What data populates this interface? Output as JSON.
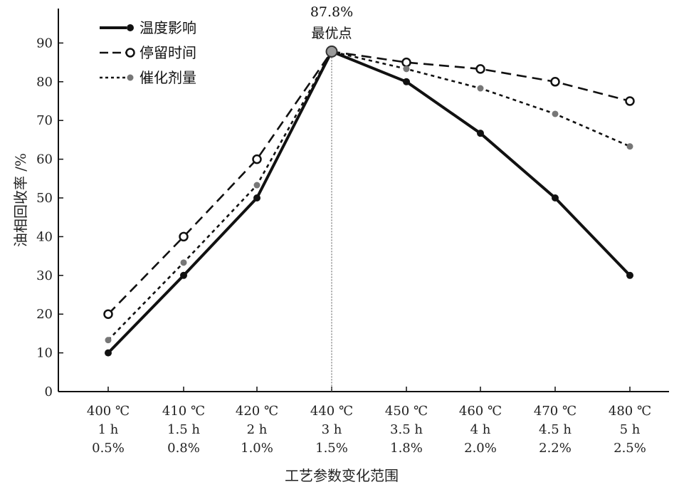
{
  "chart_data": {
    "type": "line",
    "title": "",
    "xlabel": "工艺参数变化范围",
    "ylabel": "油相回收率 /%",
    "ylim": [
      0,
      100
    ],
    "yticks": [
      0,
      10,
      20,
      30,
      40,
      50,
      60,
      70,
      80,
      90
    ],
    "categories": [
      [
        "400 ℃",
        "1 h",
        "0.5%"
      ],
      [
        "410 ℃",
        "1.5 h",
        "0.8%"
      ],
      [
        "420 ℃",
        "2 h",
        "1.0%"
      ],
      [
        "440 ℃",
        "3 h",
        "1.5%"
      ],
      [
        "450 ℃",
        "3.5 h",
        "1.8%"
      ],
      [
        "460 ℃",
        "4 h",
        "2.0%"
      ],
      [
        "470 ℃",
        "4.5 h",
        "2.2%"
      ],
      [
        "480 ℃",
        "5 h",
        "2.5%"
      ]
    ],
    "series": [
      {
        "name": "温度影响",
        "style": "solid",
        "marker": "filled-black",
        "color": "#111111",
        "values": [
          10,
          30,
          50,
          87.8,
          80,
          66.7,
          50,
          30
        ]
      },
      {
        "name": "停留时间",
        "style": "dashed",
        "marker": "open-circle",
        "color": "#111111",
        "values": [
          20,
          40,
          60,
          87.8,
          85,
          83.3,
          80,
          75
        ]
      },
      {
        "name": "催化剂量",
        "style": "dotted",
        "marker": "filled-gray",
        "color": "#111111",
        "marker_color": "#777777",
        "values": [
          13.3,
          33.3,
          53.3,
          87.8,
          83.3,
          78.3,
          71.7,
          63.3
        ]
      }
    ],
    "legend_position": "top-left",
    "grid": false,
    "annotation": {
      "label_value": "87.8%",
      "label_text": "最优点",
      "category_index": 3,
      "value": 87.8,
      "reference_line": "vertical-dotted"
    }
  }
}
